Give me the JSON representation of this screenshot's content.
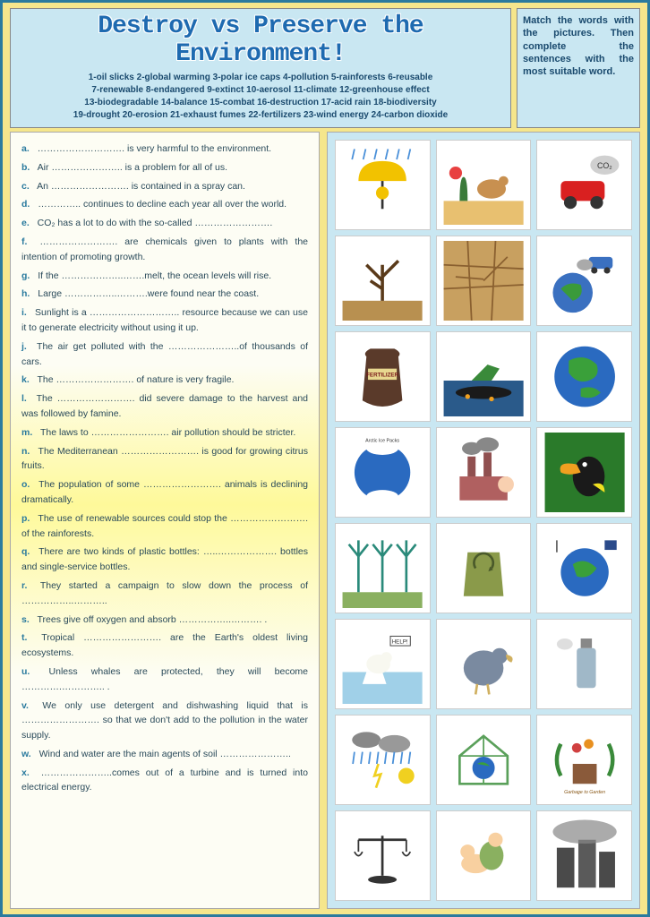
{
  "title": "Destroy vs Preserve the Environment!",
  "word_bank_lines": [
    "1-oil slicks   2-global warming   3-polar ice caps   4-pollution   5-rainforests   6-reusable",
    "7-renewable   8-endangered   9-extinct   10-aerosol   11-climate   12-greenhouse effect",
    "13-biodegradable   14-balance   15-combat   16-destruction   17-acid rain   18-biodiversity",
    "19-drought   20-erosion   21-exhaust fumes   22-fertilizers   23-wind energy   24-carbon dioxide"
  ],
  "instructions": "Match the words with the pictures. Then complete the sentences with the most suitable word.",
  "sentences": [
    {
      "letter": "a.",
      "text": "………………………. is very harmful to the environment."
    },
    {
      "letter": "b.",
      "text": "Air ………………….. is a problem for all of us."
    },
    {
      "letter": "c.",
      "text": "An ……………………. is contained in a spray can."
    },
    {
      "letter": "d.",
      "text": "………….. continues to decline each year all over the world."
    },
    {
      "letter": "e.",
      "text": "CO₂ has a lot to do with the so-called ……………………."
    },
    {
      "letter": "f.",
      "text": "……………………. are chemicals given to plants with the intention of promoting growth."
    },
    {
      "letter": "g.",
      "text": "If the ………………..…….melt, the ocean levels will rise."
    },
    {
      "letter": "h.",
      "text": "Large ……………..……….were found near the coast."
    },
    {
      "letter": "i.",
      "text": "Sunlight is a ……………………….. resource because we can use it to generate electricity without using it up."
    },
    {
      "letter": "j.",
      "text": "The air get polluted with the …………………..of thousands of cars."
    },
    {
      "letter": "k.",
      "text": "The ……………………. of nature is very fragile."
    },
    {
      "letter": "l.",
      "text": "The ……………………. did severe damage to the harvest and was followed by famine."
    },
    {
      "letter": "m.",
      "text": "The laws to ……………………. air pollution should be stricter."
    },
    {
      "letter": "n.",
      "text": "The Mediterranean ……………………. is good for growing citrus fruits."
    },
    {
      "letter": "o.",
      "text": "The population of some ……………………. animals is declining dramatically."
    },
    {
      "letter": "p.",
      "text": "The use of renewable sources could stop the ……………………. of the rainforests."
    },
    {
      "letter": "q.",
      "text": "There are two kinds of plastic bottles: …..………………. bottles and single-service bottles."
    },
    {
      "letter": "r.",
      "text": "They started a campaign to slow down the process of ……………..……….."
    },
    {
      "letter": "s.",
      "text": "Trees give off oxygen and absorb ……………..………. ."
    },
    {
      "letter": "t.",
      "text": "Tropical ……………………. are the Earth's oldest living ecosystems."
    },
    {
      "letter": "u.",
      "text": "Unless whales are protected, they will become ………….………….. ."
    },
    {
      "letter": "v.",
      "text": "We only use detergent and dishwashing liquid that is ……………………. so that we don't add to the pollution in the water supply."
    },
    {
      "letter": "w.",
      "text": "Wind and water are the main agents of soil ………………….."
    },
    {
      "letter": "x.",
      "text": "…………………..comes out of a turbine and is turned into electrical energy."
    }
  ],
  "pictures": [
    {
      "name": "umbrella-rain",
      "bg": "#fff"
    },
    {
      "name": "desert-camel",
      "bg": "#fff"
    },
    {
      "name": "car-co2",
      "bg": "#fff",
      "label": "CO₂"
    },
    {
      "name": "dead-tree",
      "bg": "#fff"
    },
    {
      "name": "cracked-earth",
      "bg": "#fff"
    },
    {
      "name": "car-globe-fumes",
      "bg": "#fff"
    },
    {
      "name": "fertilizer-sack",
      "bg": "#fff",
      "label": "FERTILIZER"
    },
    {
      "name": "sinking-ship-oil",
      "bg": "#fff"
    },
    {
      "name": "earth-green",
      "bg": "#fff"
    },
    {
      "name": "polar-ice-caps",
      "bg": "#fff",
      "label": "Earth's Polar Ice Caps"
    },
    {
      "name": "factory-smoke",
      "bg": "#fff"
    },
    {
      "name": "rainforest-toucan",
      "bg": "#fff"
    },
    {
      "name": "wind-turbines",
      "bg": "#fff"
    },
    {
      "name": "recycle-bag",
      "bg": "#fff"
    },
    {
      "name": "globe-renewables",
      "bg": "#fff"
    },
    {
      "name": "polar-bear-help",
      "bg": "#fff",
      "label": "HELP!"
    },
    {
      "name": "dodo-bird",
      "bg": "#fff"
    },
    {
      "name": "spray-can",
      "bg": "#fff"
    },
    {
      "name": "weather-storms",
      "bg": "#fff"
    },
    {
      "name": "greenhouse-earth",
      "bg": "#fff"
    },
    {
      "name": "garbage-to-garden",
      "bg": "#fff",
      "label": "From Garbage to Garden"
    },
    {
      "name": "balance-scale",
      "bg": "#fff"
    },
    {
      "name": "wrestling-combat",
      "bg": "#fff"
    },
    {
      "name": "buildings-smog",
      "bg": "#fff"
    }
  ],
  "colors": {
    "page_bg": "#f5e68c",
    "border": "#2a7a9e",
    "panel_blue": "#c9e7f2",
    "text_blue": "#1a4a6e",
    "title_blue": "#1e6ab0"
  }
}
